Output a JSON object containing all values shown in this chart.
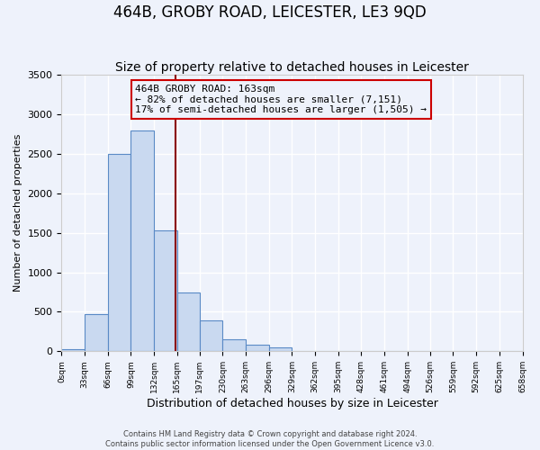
{
  "title": "464B, GROBY ROAD, LEICESTER, LE3 9QD",
  "subtitle": "Size of property relative to detached houses in Leicester",
  "xlabel": "Distribution of detached houses by size in Leicester",
  "ylabel": "Number of detached properties",
  "bar_values": [
    30,
    470,
    2500,
    2800,
    1530,
    750,
    390,
    150,
    80,
    50,
    0,
    0,
    0,
    0,
    0,
    0,
    0,
    0,
    0,
    0
  ],
  "bin_edges": [
    0,
    33,
    66,
    99,
    132,
    165,
    197,
    230,
    263,
    296,
    329,
    362,
    395,
    428,
    461,
    494,
    526,
    559,
    592,
    625,
    658
  ],
  "tick_labels": [
    "0sqm",
    "33sqm",
    "66sqm",
    "99sqm",
    "132sqm",
    "165sqm",
    "197sqm",
    "230sqm",
    "263sqm",
    "296sqm",
    "329sqm",
    "362sqm",
    "395sqm",
    "428sqm",
    "461sqm",
    "494sqm",
    "526sqm",
    "559sqm",
    "592sqm",
    "625sqm",
    "658sqm"
  ],
  "bar_facecolor": "#c9d9f0",
  "bar_edgecolor": "#5a8ac6",
  "vline_x": 163,
  "vline_color": "#8b0000",
  "annotation_title": "464B GROBY ROAD: 163sqm",
  "annotation_line1": "← 82% of detached houses are smaller (7,151)",
  "annotation_line2": "17% of semi-detached houses are larger (1,505) →",
  "annotation_box_edgecolor": "#cc0000",
  "ylim": [
    0,
    3500
  ],
  "yticks": [
    0,
    500,
    1000,
    1500,
    2000,
    2500,
    3000,
    3500
  ],
  "background_color": "#eef2fb",
  "grid_color": "#ffffff",
  "footer_line1": "Contains HM Land Registry data © Crown copyright and database right 2024.",
  "footer_line2": "Contains public sector information licensed under the Open Government Licence v3.0.",
  "title_fontsize": 12,
  "subtitle_fontsize": 10,
  "xlabel_fontsize": 9,
  "ylabel_fontsize": 8
}
